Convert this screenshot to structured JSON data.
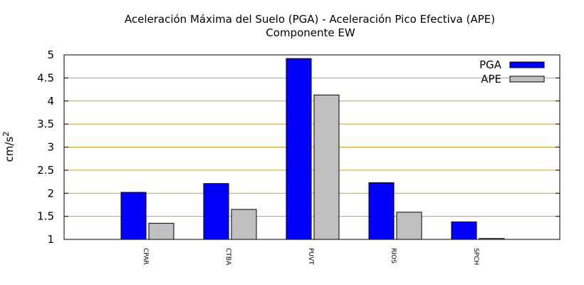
{
  "chart_data": {
    "type": "bar",
    "title": "Aceleración Máxima del Suelo (PGA) -  Aceleración Pico Efectiva (APE)",
    "subtitle": "Componente EW",
    "ylabel": "cm/s",
    "ylabel_superscript": "2",
    "ylim": [
      1,
      5
    ],
    "yticks": [
      "1",
      "1.5",
      "2",
      "2.5",
      "3",
      "3.5",
      "4",
      "4.5",
      "5"
    ],
    "grid": true,
    "grid_color": "#c8a032",
    "legend_position": "top-right",
    "categories": [
      "CPAR",
      "CTBA",
      "PUVT",
      "RIOS",
      "SPCH"
    ],
    "series": [
      {
        "name": "PGA",
        "color": "#0000ff",
        "values": [
          2.02,
          2.21,
          4.92,
          2.23,
          1.38
        ]
      },
      {
        "name": "APE",
        "color": "#c0c0c0",
        "values": [
          1.35,
          1.65,
          4.13,
          1.59,
          1.02
        ]
      }
    ]
  }
}
